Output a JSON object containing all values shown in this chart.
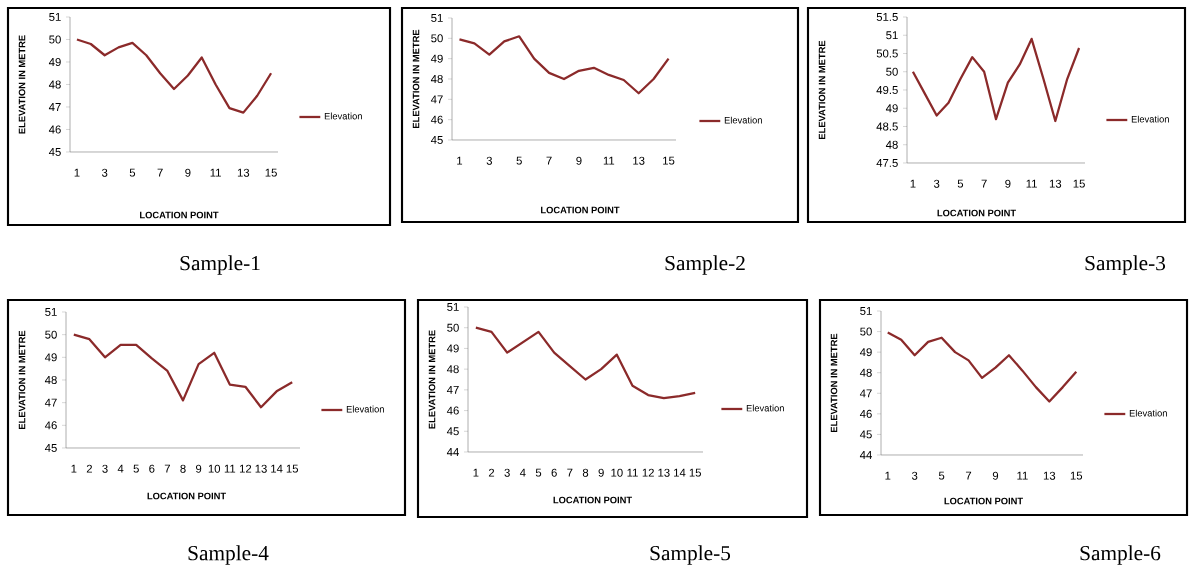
{
  "chart_data": [
    {
      "type": "line",
      "title": "Sample-1",
      "xlabel": "LOCATION  POINT",
      "ylabel": "ELEVATION IN METRE",
      "categories": [
        "1",
        null,
        "3",
        null,
        "5",
        null,
        "7",
        null,
        "9",
        null,
        "11",
        null,
        "13",
        null,
        "15"
      ],
      "series": [
        {
          "name": "Elevation",
          "color": "#8b2a2a",
          "values": [
            50.0,
            49.8,
            49.3,
            49.65,
            49.85,
            49.3,
            48.5,
            47.8,
            48.4,
            49.2,
            48.0,
            46.95,
            46.75,
            47.5,
            48.5
          ]
        }
      ],
      "ylim": [
        45,
        51
      ],
      "yticks": [
        45,
        46,
        47,
        48,
        49,
        50,
        51
      ],
      "legend": "right"
    },
    {
      "type": "line",
      "title": "Sample-2",
      "xlabel": "LOCATION  POINT",
      "ylabel": "ELEVATION IN METRE",
      "categories": [
        "1",
        null,
        "3",
        null,
        "5",
        null,
        "7",
        null,
        "9",
        null,
        "11",
        null,
        "13",
        null,
        "15"
      ],
      "series": [
        {
          "name": "Elevation",
          "color": "#8b2a2a",
          "values": [
            49.95,
            49.75,
            49.2,
            49.85,
            50.1,
            49.0,
            48.3,
            48.0,
            48.4,
            48.55,
            48.2,
            47.95,
            47.3,
            48.0,
            49.0
          ]
        }
      ],
      "ylim": [
        45,
        51
      ],
      "yticks": [
        45,
        46,
        47,
        48,
        49,
        50,
        51
      ],
      "legend": "right"
    },
    {
      "type": "line",
      "title": "Sample-3",
      "xlabel": "LOCATION POINT",
      "ylabel": "ELEVATION IN METRE",
      "categories": [
        "1",
        null,
        "3",
        null,
        "5",
        null,
        "7",
        null,
        "9",
        null,
        "11",
        null,
        "13",
        null,
        "15"
      ],
      "series": [
        {
          "name": "Elevation",
          "color": "#8b2a2a",
          "values": [
            50.0,
            49.4,
            48.8,
            49.15,
            49.8,
            50.4,
            50.0,
            48.7,
            49.7,
            50.2,
            50.9,
            49.8,
            48.65,
            49.8,
            50.65
          ]
        }
      ],
      "ylim": [
        47.5,
        51.5
      ],
      "yticks": [
        47.5,
        48,
        48.5,
        49,
        49.5,
        50,
        50.5,
        51,
        51.5
      ],
      "legend": "right"
    },
    {
      "type": "line",
      "title": "Sample-4",
      "xlabel": "LOCATION POINT",
      "ylabel": "ELEVATION IN METRE",
      "categories": [
        "1",
        "2",
        "3",
        "4",
        "5",
        "6",
        "7",
        "8",
        "9",
        "10",
        "11",
        "12",
        "13",
        "14",
        "15"
      ],
      "series": [
        {
          "name": "Elevation",
          "color": "#8b2a2a",
          "values": [
            50.0,
            49.8,
            49.0,
            49.55,
            49.55,
            48.95,
            48.4,
            47.1,
            48.7,
            49.2,
            47.8,
            47.7,
            46.8,
            47.5,
            47.9
          ]
        }
      ],
      "ylim": [
        45,
        51
      ],
      "yticks": [
        45,
        46,
        47,
        48,
        49,
        50,
        51
      ],
      "legend": "right"
    },
    {
      "type": "line",
      "title": "Sample-5",
      "xlabel": "LOCATION POINT",
      "ylabel": "ELEVATION IN METRE",
      "categories": [
        "1",
        "2",
        "3",
        "4",
        "5",
        "6",
        "7",
        "8",
        "9",
        "10",
        "11",
        "12",
        "13",
        "14",
        "15"
      ],
      "series": [
        {
          "name": "Elevation",
          "color": "#8b2a2a",
          "values": [
            50.0,
            49.8,
            48.8,
            49.3,
            49.8,
            48.8,
            48.15,
            47.5,
            48.0,
            48.7,
            47.2,
            46.75,
            46.6,
            46.7,
            46.85
          ]
        }
      ],
      "ylim": [
        44,
        51
      ],
      "yticks": [
        44,
        45,
        46,
        47,
        48,
        49,
        50,
        51
      ],
      "legend": "right"
    },
    {
      "type": "line",
      "title": "Sample-6",
      "xlabel": "LOCATION POINT",
      "ylabel": "ELEVATION IN METRE",
      "categories": [
        "1",
        null,
        "3",
        null,
        "5",
        null,
        "7",
        null,
        "9",
        null,
        "11",
        null,
        "13",
        null,
        "15"
      ],
      "series": [
        {
          "name": "Elevation",
          "color": "#8b2a2a",
          "values": [
            49.95,
            49.6,
            48.85,
            49.5,
            49.7,
            49.0,
            48.6,
            47.75,
            48.25,
            48.85,
            48.1,
            47.3,
            46.6,
            47.3,
            48.05
          ]
        }
      ],
      "ylim": [
        44,
        51
      ],
      "yticks": [
        44,
        45,
        46,
        47,
        48,
        49,
        50,
        51
      ],
      "legend": "right"
    }
  ]
}
